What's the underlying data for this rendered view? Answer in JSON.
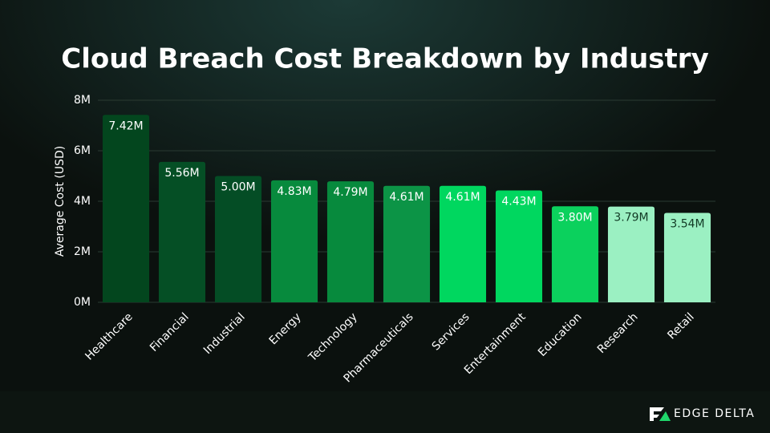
{
  "chart_data": {
    "type": "bar",
    "title": "Cloud Breach Cost Breakdown by Industry",
    "y_label": "Average Cost (USD)",
    "categories": [
      "Healthcare",
      "Financial",
      "Industrial",
      "Energy",
      "Technology",
      "Pharmaceuticals",
      "Services",
      "Entertainment",
      "Education",
      "Research",
      "Retail"
    ],
    "values": [
      7.42,
      5.56,
      5.0,
      4.83,
      4.79,
      4.61,
      4.61,
      4.43,
      3.8,
      3.79,
      3.54
    ],
    "value_labels": [
      "7.42M",
      "5.56M",
      "5.00M",
      "4.83M",
      "4.79M",
      "4.61M",
      "4.61M",
      "4.43M",
      "3.80M",
      "3.79M",
      "3.54M"
    ],
    "colors": [
      "#03461e",
      "#054f25",
      "#044d25",
      "#078a3d",
      "#078a3d",
      "#0c9446",
      "#00d75f",
      "#00d75f",
      "#0bd15d",
      "#9bf0c2",
      "#9bf0c2"
    ],
    "ylim": [
      0,
      8
    ],
    "yticks": [
      {
        "value": 0,
        "label": "0M"
      },
      {
        "value": 2,
        "label": "2M"
      },
      {
        "value": 4,
        "label": "4M"
      },
      {
        "value": 6,
        "label": "6M"
      },
      {
        "value": 8,
        "label": "8M"
      }
    ],
    "grid": true
  },
  "logo_text": "EDGE DELTA"
}
